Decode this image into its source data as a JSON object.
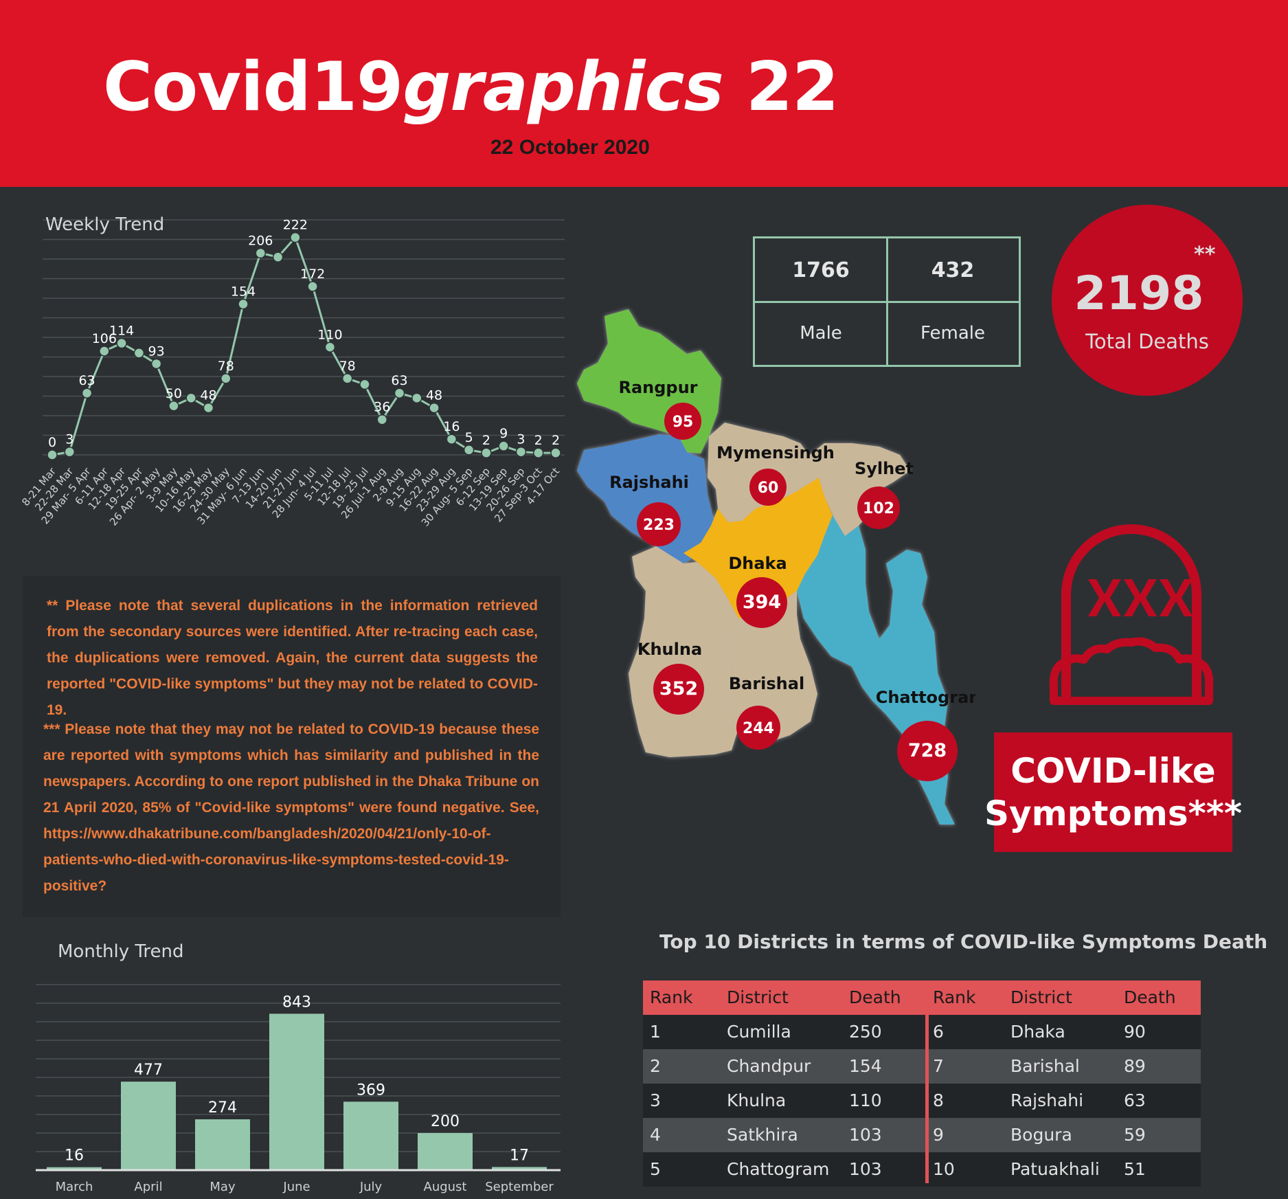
{
  "header": {
    "title_part1": "Covid19",
    "title_part2": "graphics",
    "title_part3": " 22",
    "date": "22 October 2020"
  },
  "weekly": {
    "title": "Weekly Trend"
  },
  "monthly": {
    "title": "Monthly Trend"
  },
  "notes": {
    "note1": "** Please note that several duplications in the information retrieved from the secondary sources were identified. After re-tracing each case, the duplications were removed. Again, the current data suggests the reported \"COVID-like symptoms\" but they may not be related to COVID-19.",
    "note2": "*** Please note that they may not be related to COVID-19 because these are reported with symptoms which has similarity and published in the newspapers. According to one report published in the Dhaka Tribune on 21 April 2020, 85% of \"Covid-like symptoms\" were found negative. See, https://www.dhakatribune.com/bangladesh/2020/04/21/only-10-of-patients-who-died-with-coronavirus-like-symptoms-tested-covid-19-positive?"
  },
  "gender": {
    "male_count": "1766",
    "female_count": "432",
    "male_label": "Male",
    "female_label": "Female"
  },
  "total": {
    "value": "2198",
    "stars": "**",
    "label": "Total Deaths"
  },
  "covid_box": {
    "line1": "COVID-like",
    "line2": "Symptoms***"
  },
  "map": {
    "divisions": [
      {
        "name": "Rangpur",
        "value": "95",
        "color": "#6cbf45"
      },
      {
        "name": "Mymensingh",
        "value": "60",
        "color": "#c9b79a"
      },
      {
        "name": "Sylhet",
        "value": "102",
        "color": "#c9b79a"
      },
      {
        "name": "Rajshahi",
        "value": "223",
        "color": "#4f86c6"
      },
      {
        "name": "Dhaka",
        "value": "394",
        "color": "#f2b318"
      },
      {
        "name": "Khulna",
        "value": "352",
        "color": "#c9b79a"
      },
      {
        "name": "Barishal",
        "value": "244",
        "color": "#c9b79a"
      },
      {
        "name": "Chattogram",
        "value": "728",
        "color": "#4aafc9"
      }
    ]
  },
  "top10": {
    "title": "Top 10 Districts in terms of COVID-like Symptoms Death",
    "headers": [
      "Rank",
      "District",
      "Death",
      "Rank",
      "District",
      "Death"
    ],
    "rows": [
      [
        "1",
        "Cumilla",
        "250",
        "6",
        "Dhaka",
        "90"
      ],
      [
        "2",
        "Chandpur",
        "154",
        "7",
        "Barishal",
        "89"
      ],
      [
        "3",
        "Khulna",
        "110",
        "8",
        "Rajshahi",
        "63"
      ],
      [
        "4",
        "Satkhira",
        "103",
        "9",
        "Bogura",
        "59"
      ],
      [
        "5",
        "Chattogram",
        "103",
        "10",
        "Patuakhali",
        "51"
      ]
    ],
    "header_color": "#e05357"
  },
  "chart_data": [
    {
      "type": "line",
      "title": "Weekly Trend",
      "x": [
        "8-21 Mar",
        "22-28 Mar",
        "29 Mar- 5 Apr",
        "6-11 Apr",
        "12-18 Apr",
        "19-25 Apr",
        "26 Apr- 2 May",
        "3-9 May",
        "10-16 May",
        "16-23 May",
        "24-30 May",
        "31 May- 6 Jun",
        "7-13 Jun",
        "14-20 Jun",
        "21-27 Jun",
        "28 Jun- 4 Jul",
        "5-11 Jul",
        "12-18 Jul",
        "19- 25 Jul",
        "26 Jul-1 Aug",
        "2-8 Aug",
        "9-15 Aug",
        "16-22 Aug",
        "23-29 Aug",
        "30 Aug- 5 Sep",
        "6-12 Sep",
        "13-19 Sep",
        "20-26 Sep",
        "27 Sep-3 Oct",
        "4-17 Oct"
      ],
      "values": [
        0,
        3,
        63,
        106,
        114,
        104,
        93,
        50,
        58,
        48,
        78,
        154,
        206,
        202,
        222,
        172,
        110,
        78,
        72,
        36,
        63,
        58,
        48,
        16,
        5,
        2,
        9,
        3,
        2,
        2
      ],
      "labels": [
        "0",
        "3",
        "63",
        "106",
        "114",
        "",
        "93",
        "50",
        "",
        "48",
        "78",
        "154",
        "206",
        "",
        "222",
        "172",
        "110",
        "78",
        "",
        "36",
        "63",
        "",
        "48",
        "16",
        "5",
        "2",
        "9",
        "3",
        "2",
        "2"
      ],
      "ylim": [
        0,
        240
      ],
      "grid": true,
      "color": "#94c7ac"
    },
    {
      "type": "bar",
      "title": "Monthly Trend",
      "categories": [
        "March",
        "April",
        "May",
        "June",
        "July",
        "August",
        "September"
      ],
      "values": [
        16,
        477,
        274,
        843,
        369,
        200,
        17
      ],
      "ylim": [
        0,
        1000
      ],
      "grid": true,
      "color": "#94c7ac"
    }
  ]
}
